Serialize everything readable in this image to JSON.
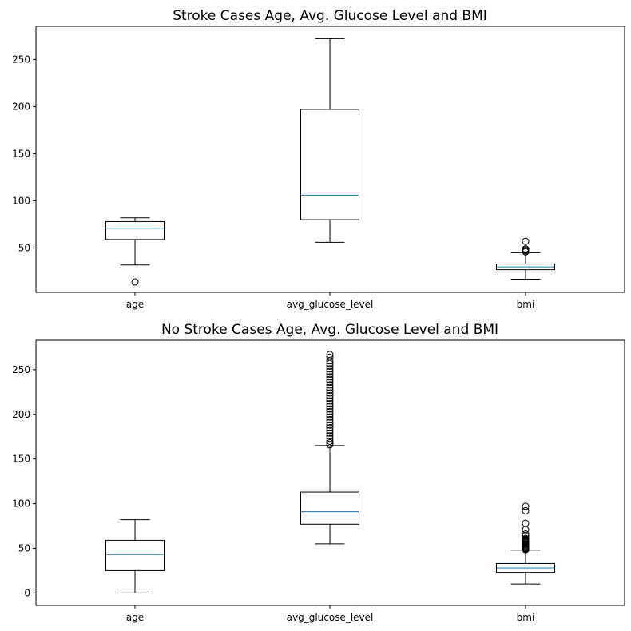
{
  "chart_data": [
    {
      "type": "box",
      "title": "Stroke Cases Age, Avg. Glucose Level and BMI",
      "xlabel": "",
      "ylabel": "",
      "ylim": [
        3,
        285
      ],
      "yticks": [
        50,
        100,
        150,
        200,
        250
      ],
      "grid": false,
      "categories": [
        "age",
        "avg_glucose_level",
        "bmi"
      ],
      "boxes": [
        {
          "name": "age",
          "whisker_low": 32,
          "q1": 59,
          "median": 71,
          "q3": 78,
          "whisker_high": 82,
          "outliers": [
            14
          ]
        },
        {
          "name": "avg_glucose_level",
          "whisker_low": 56,
          "q1": 80,
          "median": 106,
          "q3": 197,
          "whisker_high": 272,
          "outliers": []
        },
        {
          "name": "bmi",
          "whisker_low": 17,
          "q1": 27,
          "median": 30,
          "q3": 33,
          "whisker_high": 45,
          "outliers": [
            46,
            47,
            48,
            49,
            57
          ]
        }
      ]
    },
    {
      "type": "box",
      "title": "No Stroke Cases Age, Avg. Glucose Level and BMI",
      "xlabel": "",
      "ylabel": "",
      "ylim": [
        -14,
        283
      ],
      "yticks": [
        0,
        50,
        100,
        150,
        200,
        250
      ],
      "grid": false,
      "categories": [
        "age",
        "avg_glucose_level",
        "bmi"
      ],
      "boxes": [
        {
          "name": "age",
          "whisker_low": 0,
          "q1": 25,
          "median": 43,
          "q3": 59,
          "whisker_high": 82,
          "outliers": []
        },
        {
          "name": "avg_glucose_level",
          "whisker_low": 55,
          "q1": 77,
          "median": 91,
          "q3": 113,
          "whisker_high": 165,
          "outliers": [
            166,
            168,
            170,
            173,
            176,
            179,
            182,
            185,
            188,
            191,
            194,
            197,
            200,
            203,
            206,
            209,
            212,
            215,
            218,
            221,
            224,
            227,
            230,
            233,
            236,
            239,
            242,
            245,
            248,
            251,
            254,
            257,
            260,
            264,
            267
          ]
        },
        {
          "name": "bmi",
          "whisker_low": 10,
          "q1": 23,
          "median": 28,
          "q3": 33,
          "whisker_high": 48,
          "outliers": [
            48.5,
            49,
            50,
            51,
            52,
            53,
            54,
            55,
            56,
            57,
            58,
            59,
            60,
            61,
            64,
            66,
            71,
            78,
            92,
            97
          ]
        }
      ]
    }
  ],
  "colors": {
    "median": "#1f77b4",
    "box": "#000000",
    "background": "#ffffff"
  }
}
